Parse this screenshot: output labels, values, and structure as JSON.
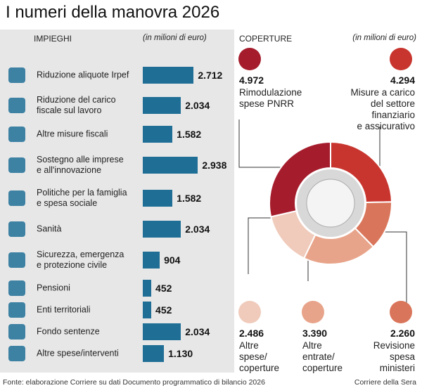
{
  "title": "I numeri della manovra 2026",
  "source": "Fonte: elaborazione Corriere su dati Documento programmatico di bilancio 2026",
  "credit": "Corriere della Sera",
  "chart_data": [
    {
      "type": "bar",
      "title": "IMPIEGHI",
      "subtitle": "(in milioni di euro)",
      "color": "#1f6e96",
      "categories": [
        "Riduzione aliquote Irpef",
        "Riduzione del carico\nfiscale sul lavoro",
        "Altre misure fiscali",
        "Sostegno alle imprese\ne all'innovazione",
        "Politiche per la famiglia\ne spesa sociale",
        "Sanità",
        "Sicurezza, emergenza\ne protezione civile",
        "Pensioni",
        "Enti territoriali",
        "Fondo sentenze",
        "Altre spese/interventi"
      ],
      "values": [
        2712,
        2034,
        1582,
        2938,
        1582,
        2034,
        904,
        452,
        452,
        2034,
        1130
      ],
      "value_labels": [
        "2.712",
        "2.034",
        "1.582",
        "2.938",
        "1.582",
        "2.034",
        "904",
        "452",
        "452",
        "2.034",
        "1.130"
      ]
    },
    {
      "type": "donut",
      "title": "COPERTURE",
      "subtitle": "(in milioni di euro)",
      "categories": [
        "Misure a carico\ndel settore\nfinanziario\ne assicurativo",
        "Revisione\nspesa\nministeri",
        "Altre\nentrate/\ncoperture",
        "Altre\nspese/\ncoperture",
        "Rimodulazione\nspese PNRR"
      ],
      "values": [
        4294,
        2260,
        3390,
        2486,
        4972
      ],
      "value_labels": [
        "4.294",
        "2.260",
        "3.390",
        "2.486",
        "4.972"
      ],
      "colors": [
        "#c8352e",
        "#d9755a",
        "#e8a48a",
        "#f0cbbb",
        "#a51d2d"
      ]
    }
  ]
}
